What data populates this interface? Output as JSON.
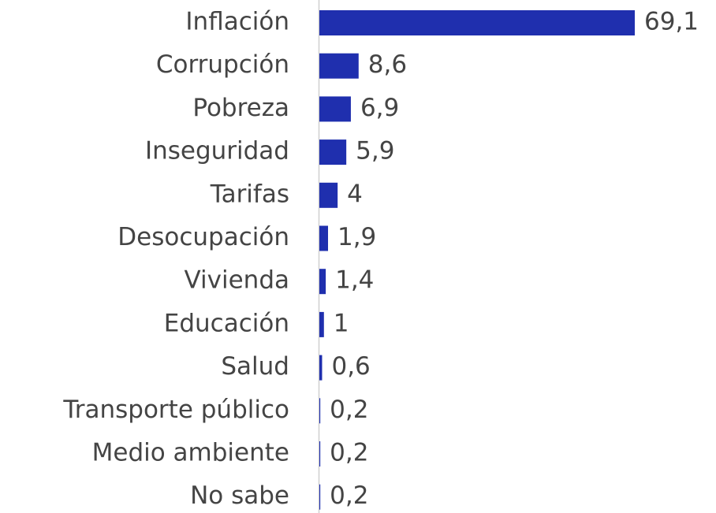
{
  "chart_data": {
    "type": "hbar",
    "categories": [
      "Inflación",
      "Corrupción",
      "Pobreza",
      "Inseguridad",
      "Tarifas",
      "Desocupación",
      "Vivienda",
      "Educación",
      "Salud",
      "Transporte público",
      "Medio ambiente",
      "No sabe"
    ],
    "values": [
      69.1,
      8.6,
      6.9,
      5.9,
      4,
      1.9,
      1.4,
      1,
      0.6,
      0.2,
      0.2,
      0.2
    ],
    "value_labels": [
      "69,1",
      "8,6",
      "6,9",
      "5,9",
      "4",
      "1,9",
      "1,4",
      "1",
      "0,6",
      "0,2",
      "0,2",
      "0,2"
    ],
    "color": "#1f2fae"
  }
}
